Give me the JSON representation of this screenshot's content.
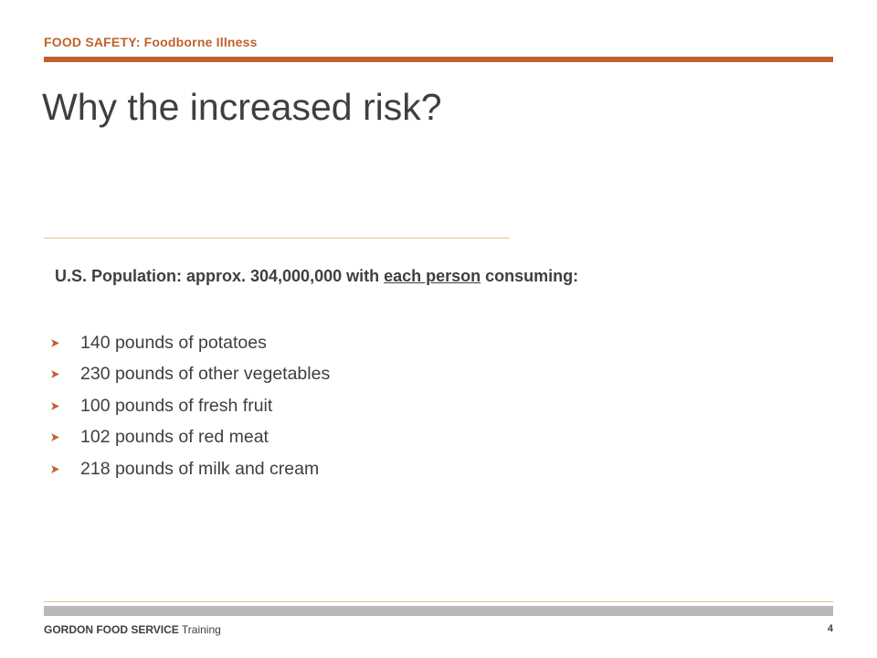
{
  "header": {
    "section_label": "FOOD SAFETY: Foodborne Illness"
  },
  "slide": {
    "title": "Why the increased risk?",
    "intro": {
      "prefix": "U.S.  Population: approx. 304,000,000 with ",
      "underlined": "each person",
      "suffix": " consuming:"
    },
    "bullets": [
      "140 pounds of potatoes",
      "230 pounds of other vegetables",
      "100 pounds of fresh fruit",
      "102 pounds of red meat",
      "218 pounds of milk and cream"
    ]
  },
  "footer": {
    "brand": "GORDON FOOD SERVICE",
    "suffix": " Training",
    "page_number": "4"
  },
  "colors": {
    "accent": "#c0612b",
    "rule": "#e2c08f",
    "footer_bar": "#b8b8b8",
    "text": "#3f3f3f"
  }
}
